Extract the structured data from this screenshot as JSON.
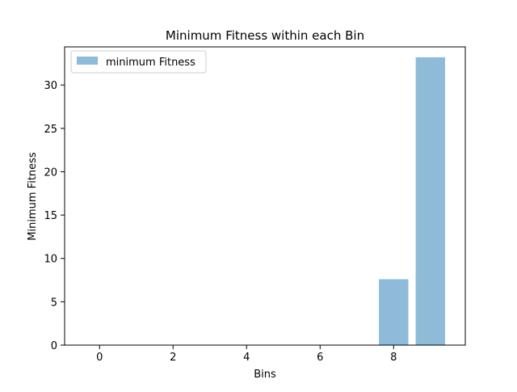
{
  "chart_data": {
    "type": "bar",
    "title": "Minimum Fitness within each Bin",
    "xlabel": "Bins",
    "ylabel": "Minimum Fitness",
    "categories": [
      0,
      1,
      2,
      3,
      4,
      5,
      6,
      7,
      8,
      9
    ],
    "series": [
      {
        "name": "minimum Fitness",
        "values": [
          0,
          0,
          0,
          0,
          0,
          0,
          0,
          0,
          7.6,
          33.2
        ],
        "color": "#1f77b4",
        "opacity": 0.5
      }
    ],
    "xlim": [
      -0.95,
      9.95
    ],
    "ylim": [
      0,
      34.4
    ],
    "xticks": [
      0,
      2,
      4,
      6,
      8
    ],
    "xtick_labels": [
      "0",
      "2",
      "4",
      "6",
      "8"
    ],
    "yticks": [
      0,
      5,
      10,
      15,
      20,
      25,
      30
    ],
    "ytick_labels": [
      "0",
      "5",
      "10",
      "15",
      "20",
      "25",
      "30"
    ],
    "bar_width": 0.8,
    "grid": false,
    "legend_position": "top-left"
  }
}
